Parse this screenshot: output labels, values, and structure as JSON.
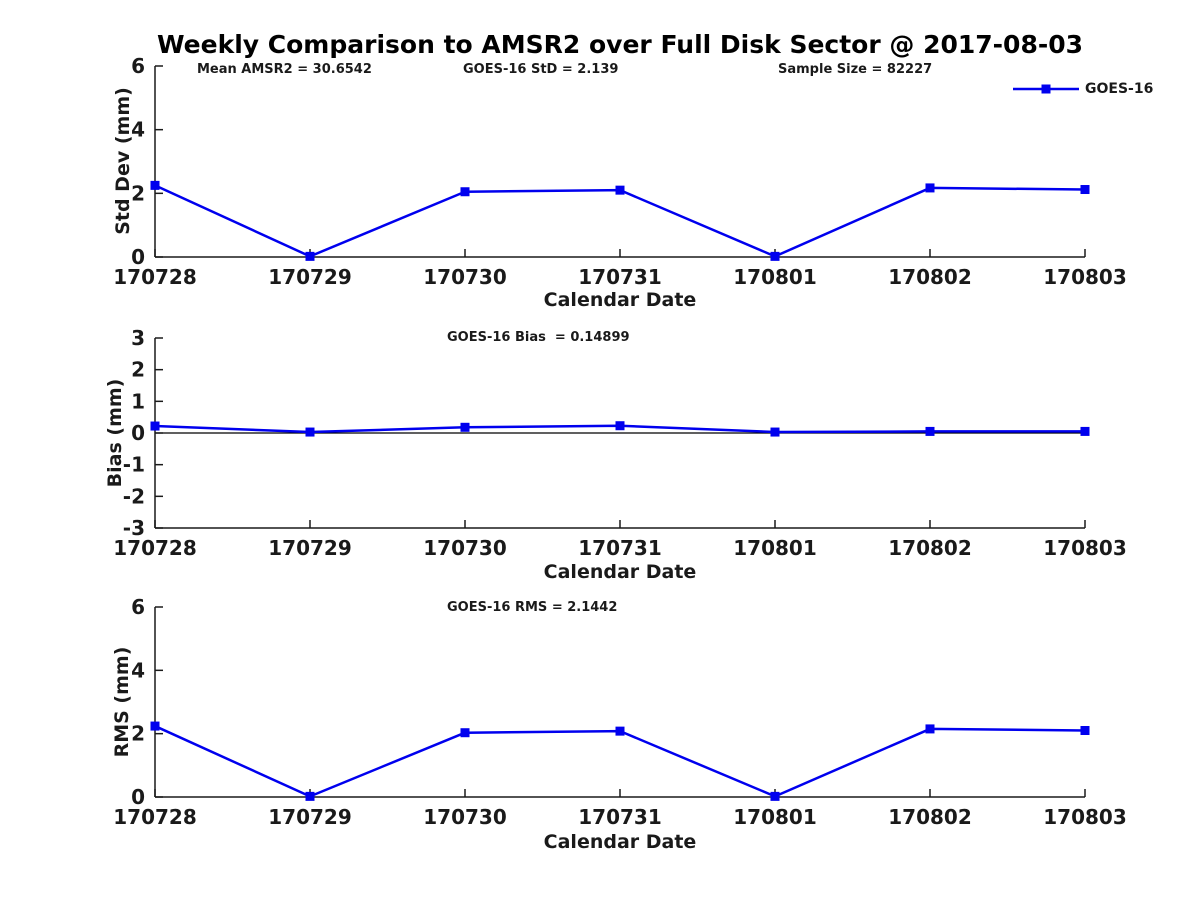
{
  "figure": {
    "title": "Weekly Comparison to AMSR2 over Full Disk Sector @ 2017-08-03"
  },
  "legend": {
    "label": "GOES-16"
  },
  "colors": {
    "line": "#0000EE",
    "marker": "#0000EE",
    "axis": "#1a1a1a",
    "tick_text": "#1a1a1a",
    "zero_line": "#000000",
    "title_text": "#000000"
  },
  "chart_data": [
    {
      "type": "line",
      "id": "std-dev",
      "annotations": [
        "Mean AMSR2 = 30.6542",
        "GOES-16 StD = 2.139",
        "Sample Size = 82227"
      ],
      "categories": [
        "170728",
        "170729",
        "170730",
        "170731",
        "170801",
        "170802",
        "170803"
      ],
      "series": [
        {
          "name": "GOES-16",
          "values": [
            2.25,
            0.02,
            2.05,
            2.1,
            0.02,
            2.17,
            2.12
          ]
        }
      ],
      "xlabel": "Calendar Date",
      "ylabel": "Std Dev (mm)",
      "ylim": [
        0,
        6
      ],
      "yticks": [
        0,
        2,
        4,
        6
      ],
      "grid": false,
      "zero_line": false,
      "marker": "square",
      "legend_position": "top-right"
    },
    {
      "type": "line",
      "id": "bias",
      "annotations": [
        "GOES-16 Bias  = 0.14899"
      ],
      "categories": [
        "170728",
        "170729",
        "170730",
        "170731",
        "170801",
        "170802",
        "170803"
      ],
      "series": [
        {
          "name": "GOES-16",
          "values": [
            0.22,
            0.03,
            0.18,
            0.23,
            0.03,
            0.05,
            0.05
          ]
        }
      ],
      "xlabel": "Calendar Date",
      "ylabel": "Bias (mm)",
      "ylim": [
        -3,
        3
      ],
      "yticks": [
        3,
        2,
        1,
        0,
        -1,
        -2,
        -3
      ],
      "grid": false,
      "zero_line": true,
      "marker": "square",
      "legend_position": "none"
    },
    {
      "type": "line",
      "id": "rms",
      "annotations": [
        "GOES-16 RMS = 2.1442"
      ],
      "categories": [
        "170728",
        "170729",
        "170730",
        "170731",
        "170801",
        "170802",
        "170803"
      ],
      "series": [
        {
          "name": "GOES-16",
          "values": [
            2.24,
            0.02,
            2.03,
            2.08,
            0.02,
            2.15,
            2.1
          ]
        }
      ],
      "xlabel": "Calendar Date",
      "ylabel": "RMS (mm)",
      "ylim": [
        0,
        6
      ],
      "yticks": [
        0,
        2,
        4,
        6
      ],
      "grid": false,
      "zero_line": false,
      "marker": "square",
      "legend_position": "none"
    }
  ]
}
